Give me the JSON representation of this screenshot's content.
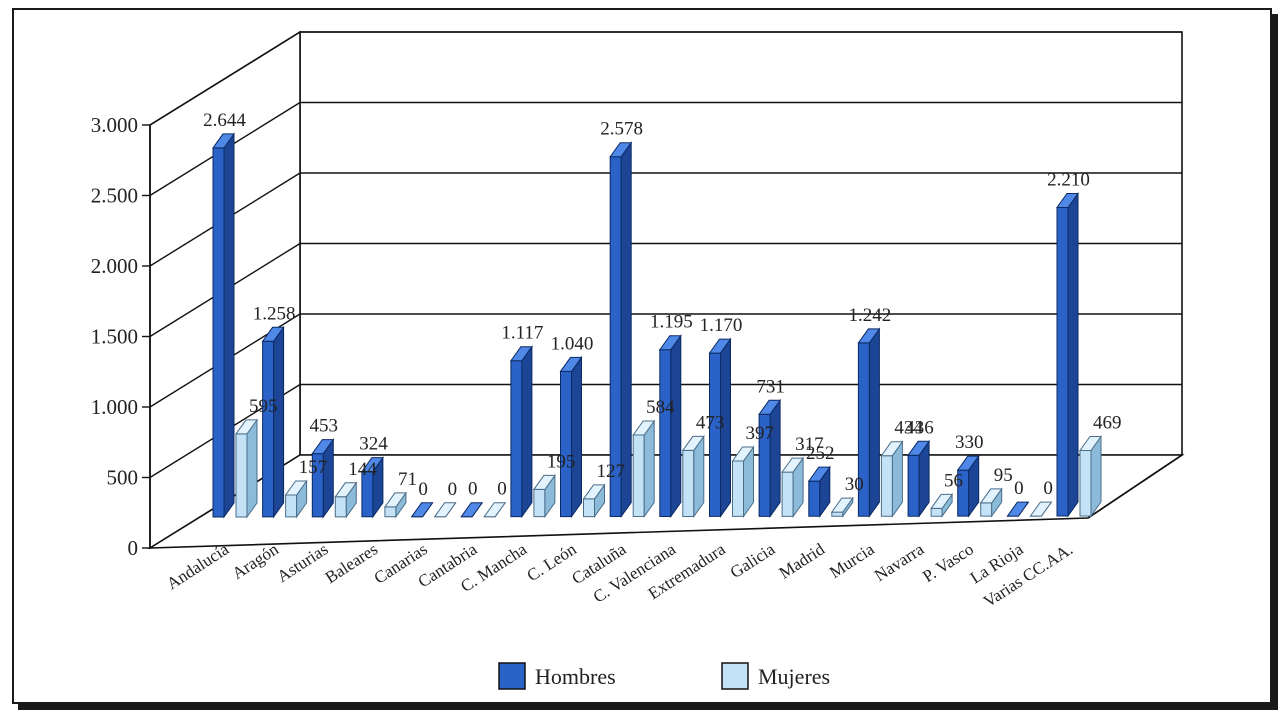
{
  "chart_data": {
    "type": "bar",
    "categories": [
      "Andalucía",
      "Aragón",
      "Asturias",
      "Baleares",
      "Canarias",
      "Cantabria",
      "C. Mancha",
      "C. León",
      "Cataluña",
      "C. Valenciana",
      "Extremadura",
      "Galicia",
      "Madrid",
      "Murcia",
      "Navarra",
      "P. Vasco",
      "La Rioja",
      "Varias CC.AA."
    ],
    "series": [
      {
        "name": "Hombres",
        "values": [
          2644,
          1258,
          453,
          324,
          0,
          0,
          1117,
          1040,
          2578,
          1195,
          1170,
          731,
          252,
          1242,
          436,
          330,
          0,
          2210
        ],
        "labels": [
          "2.644",
          "1.258",
          "453",
          "324",
          "0",
          "0",
          "1.117",
          "1.040",
          "2.578",
          "1.195",
          "1.170",
          "731",
          "252",
          "1.242",
          "436",
          "330",
          "0",
          "2.210"
        ]
      },
      {
        "name": "Mujeres",
        "values": [
          595,
          157,
          144,
          71,
          0,
          0,
          195,
          127,
          584,
          473,
          397,
          317,
          30,
          434,
          56,
          95,
          0,
          469
        ],
        "labels": [
          "595",
          "157",
          "144",
          "71",
          "0",
          "0",
          "195",
          "127",
          "584",
          "473",
          "397",
          "317",
          "30",
          "434",
          "56",
          "95",
          "0",
          "469"
        ]
      }
    ],
    "ylim": [
      0,
      3000
    ],
    "yticks": [
      0,
      500,
      1000,
      1500,
      2000,
      2500,
      3000
    ],
    "ytick_labels": [
      "0",
      "500",
      "1.000",
      "1.500",
      "2.000",
      "2.500",
      "3.000"
    ],
    "grid": true,
    "legend": "bottom-center",
    "colors": {
      "Hombres": "#2f6ad1",
      "Mujeres": "#bfe0f5"
    }
  }
}
